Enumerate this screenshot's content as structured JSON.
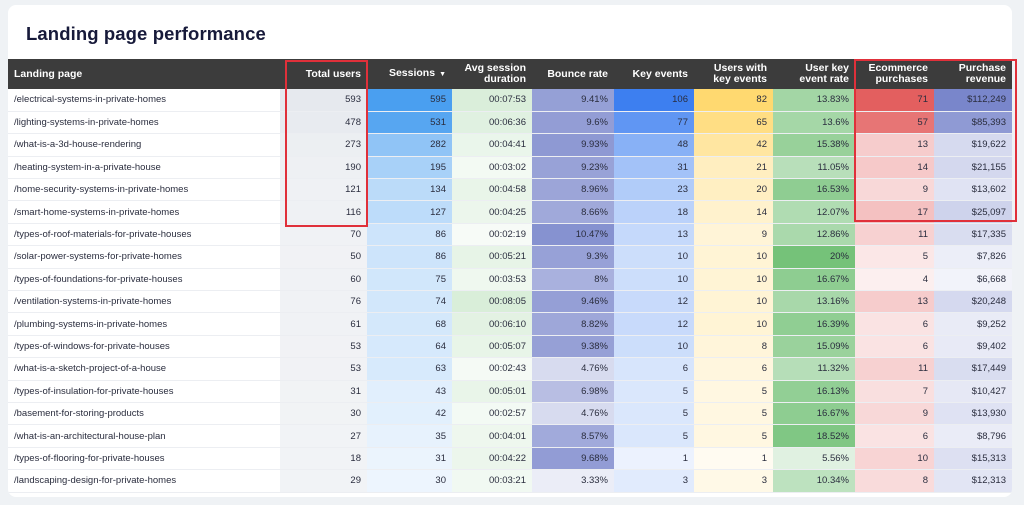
{
  "title": "Landing page performance",
  "columns": [
    {
      "key": "page",
      "label": "Landing page"
    },
    {
      "key": "total_users",
      "label": "Total users"
    },
    {
      "key": "sessions",
      "label": "Sessions",
      "sorted": "desc",
      "sort_icon": "▼"
    },
    {
      "key": "avg_session_duration",
      "label": "Avg session duration"
    },
    {
      "key": "bounce_rate",
      "label": "Bounce rate"
    },
    {
      "key": "key_events",
      "label": "Key events"
    },
    {
      "key": "users_with_key_events",
      "label": "Users with key events"
    },
    {
      "key": "user_key_event_rate",
      "label": "User key event rate"
    },
    {
      "key": "ecommerce_purchases",
      "label": "Ecommerce purchases"
    },
    {
      "key": "purchase_revenue",
      "label": "Purchase revenue"
    }
  ],
  "rows": [
    [
      "/electrical-systems-in-private-homes",
      "593",
      "595",
      "00:07:53",
      "9.41%",
      "106",
      "82",
      "13.83%",
      "71",
      "$112,249"
    ],
    [
      "/lighting-systems-in-private-homes",
      "478",
      "531",
      "00:06:36",
      "9.6%",
      "77",
      "65",
      "13.6%",
      "57",
      "$85,393"
    ],
    [
      "/what-is-a-3d-house-rendering",
      "273",
      "282",
      "00:04:41",
      "9.93%",
      "48",
      "42",
      "15.38%",
      "13",
      "$19,622"
    ],
    [
      "/heating-system-in-a-private-house",
      "190",
      "195",
      "00:03:02",
      "9.23%",
      "31",
      "21",
      "11.05%",
      "14",
      "$21,155"
    ],
    [
      "/home-security-systems-in-private-homes",
      "121",
      "134",
      "00:04:58",
      "8.96%",
      "23",
      "20",
      "16.53%",
      "9",
      "$13,602"
    ],
    [
      "/smart-home-systems-in-private-homes",
      "116",
      "127",
      "00:04:25",
      "8.66%",
      "18",
      "14",
      "12.07%",
      "17",
      "$25,097"
    ],
    [
      "/types-of-roof-materials-for-private-houses",
      "70",
      "86",
      "00:02:19",
      "10.47%",
      "13",
      "9",
      "12.86%",
      "11",
      "$17,335"
    ],
    [
      "/solar-power-systems-for-private-homes",
      "50",
      "86",
      "00:05:21",
      "9.3%",
      "10",
      "10",
      "20%",
      "5",
      "$7,826"
    ],
    [
      "/types-of-foundations-for-private-houses",
      "60",
      "75",
      "00:03:53",
      "8%",
      "10",
      "10",
      "16.67%",
      "4",
      "$6,668"
    ],
    [
      "/ventilation-systems-in-private-homes",
      "76",
      "74",
      "00:08:05",
      "9.46%",
      "12",
      "10",
      "13.16%",
      "13",
      "$20,248"
    ],
    [
      "/plumbing-systems-in-private-homes",
      "61",
      "68",
      "00:06:10",
      "8.82%",
      "12",
      "10",
      "16.39%",
      "6",
      "$9,252"
    ],
    [
      "/types-of-windows-for-private-houses",
      "53",
      "64",
      "00:05:07",
      "9.38%",
      "10",
      "8",
      "15.09%",
      "6",
      "$9,402"
    ],
    [
      "/what-is-a-sketch-project-of-a-house",
      "53",
      "63",
      "00:02:43",
      "4.76%",
      "6",
      "6",
      "11.32%",
      "11",
      "$17,449"
    ],
    [
      "/types-of-insulation-for-private-houses",
      "31",
      "43",
      "00:05:01",
      "6.98%",
      "5",
      "5",
      "16.13%",
      "7",
      "$10,427"
    ],
    [
      "/basement-for-storing-products",
      "30",
      "42",
      "00:02:57",
      "4.76%",
      "5",
      "5",
      "16.67%",
      "9",
      "$13,930"
    ],
    [
      "/what-is-an-architectural-house-plan",
      "27",
      "35",
      "00:04:01",
      "8.57%",
      "5",
      "5",
      "18.52%",
      "6",
      "$8,796"
    ],
    [
      "/types-of-flooring-for-private-houses",
      "18",
      "31",
      "00:04:22",
      "9.68%",
      "1",
      "1",
      "5.56%",
      "10",
      "$15,313"
    ],
    [
      "/landscaping-design-for-private-homes",
      "29",
      "30",
      "00:03:21",
      "3.33%",
      "3",
      "3",
      "10.34%",
      "8",
      "$12,313"
    ]
  ],
  "heatmap_colors": {
    "total_users": "#e6e9ee",
    "sessions": "#4a9ff0",
    "avg_session_duration": "#c8e6c9",
    "bounce_rate": "#7986cb",
    "key_events": "#3d7ff0",
    "users_with_key_events": "#ffd970",
    "user_key_event_rate": "#66bb6a",
    "ecommerce_purchases": "#e35f5f",
    "purchase_revenue": "#7986cb"
  },
  "highlights": [
    {
      "label": "total-users-highlight",
      "color": "#e0303a"
    },
    {
      "label": "ecommerce-revenue-highlight",
      "color": "#e0303a"
    }
  ]
}
